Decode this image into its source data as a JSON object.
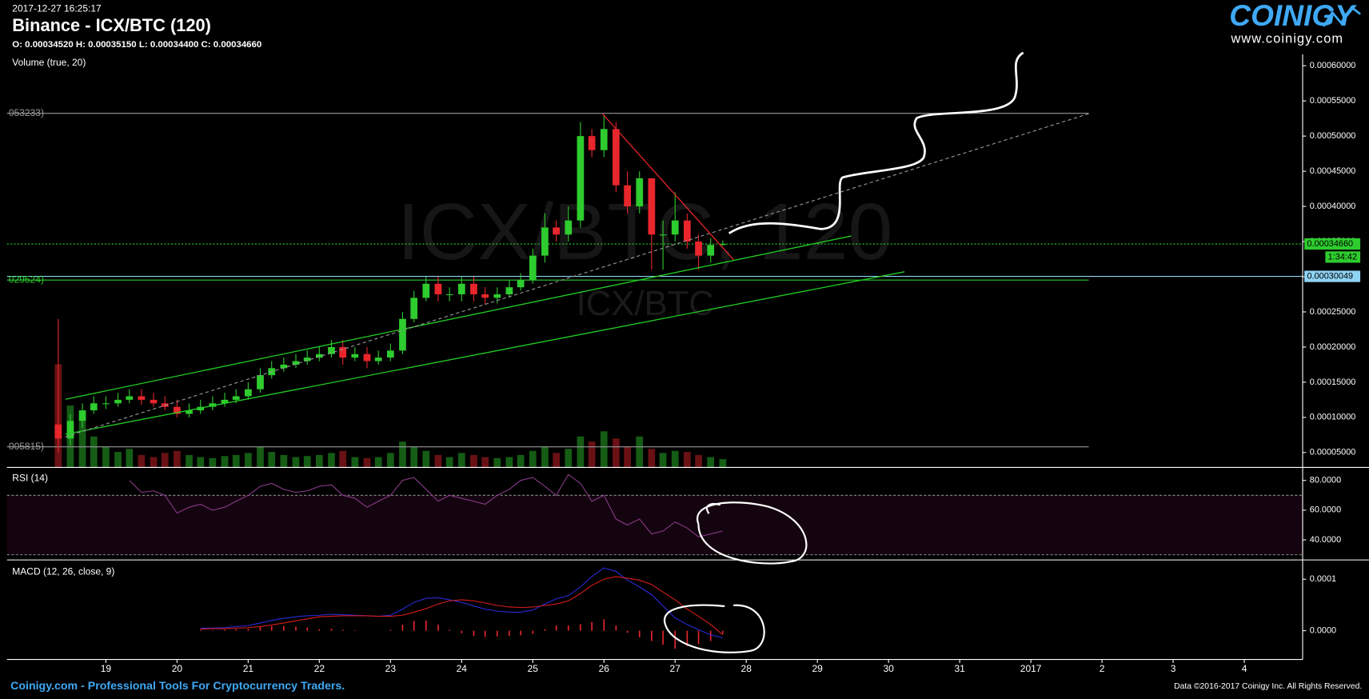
{
  "header": {
    "timestamp": "2017-12-27 16:25:17",
    "title": "Binance - ICX/BTC (120)",
    "ohlc": "O: 0.00034520 H: 0.00035150 L: 0.00034400 C: 0.00034660",
    "volume_label": "Volume (true, 20)",
    "logo": "COINIGY",
    "logo_url": "www.coinigy.com",
    "watermark": "ICX/BTC, 120",
    "watermark_small": "ICX/BTC"
  },
  "footer": {
    "left": "Coinigy.com - Professional Tools For Cryptocurrency Traders.",
    "right": "Data ©2016-2017 Coinigy Inc. All Rights Reserved."
  },
  "chart_data": [
    {
      "type": "candlestick",
      "up_color": "#2ecc2e",
      "down_color": "#e8262c",
      "x": [
        18.33,
        18.5,
        18.67,
        18.83,
        19,
        19.17,
        19.33,
        19.5,
        19.67,
        19.83,
        20,
        20.17,
        20.33,
        20.5,
        20.67,
        20.83,
        21,
        21.17,
        21.33,
        21.5,
        21.67,
        21.83,
        22,
        22.17,
        22.33,
        22.5,
        22.67,
        22.83,
        23,
        23.17,
        23.33,
        23.5,
        23.67,
        23.83,
        24,
        24.17,
        24.33,
        24.5,
        24.67,
        24.83,
        25,
        25.17,
        25.33,
        25.5,
        25.67,
        25.83,
        26,
        26.17,
        26.33,
        26.5,
        26.67,
        26.83,
        27,
        27.17,
        27.33,
        27.5,
        27.67
      ],
      "open": [
        9e-05,
        7e-05,
        9.5e-05,
        0.00011,
        0.00012,
        0.00012,
        0.000125,
        0.00013,
        0.000125,
        0.00012,
        0.000115,
        0.000105,
        0.00011,
        0.000115,
        0.00012,
        0.000125,
        0.00013,
        0.00014,
        0.00016,
        0.00017,
        0.000175,
        0.00018,
        0.000185,
        0.00019,
        0.0002,
        0.000185,
        0.00019,
        0.00018,
        0.000185,
        0.000195,
        0.00024,
        0.00027,
        0.00029,
        0.000275,
        0.000275,
        0.00029,
        0.000275,
        0.00027,
        0.000275,
        0.000285,
        0.000295,
        0.00033,
        0.00037,
        0.00036,
        0.00038,
        0.0005,
        0.00048,
        0.00051,
        0.00043,
        0.0004,
        0.00044,
        0.00036,
        0.00036,
        0.00038,
        0.00035,
        0.00033,
        0.0003452
      ],
      "high": [
        0.00024,
        0.000105,
        0.00012,
        0.00013,
        0.00013,
        0.000135,
        0.00014,
        0.00014,
        0.000135,
        0.00013,
        0.000125,
        0.00012,
        0.000125,
        0.00013,
        0.000135,
        0.00014,
        0.00015,
        0.00017,
        0.00018,
        0.000185,
        0.00019,
        0.000195,
        0.0002,
        0.00021,
        0.00021,
        0.0002,
        0.0002,
        0.000195,
        0.000205,
        0.00025,
        0.00028,
        0.0003,
        0.0003,
        0.000285,
        0.0003,
        0.0003,
        0.000285,
        0.000285,
        0.000295,
        0.000305,
        0.00034,
        0.00039,
        0.00038,
        0.0004,
        0.00052,
        0.00051,
        0.00053,
        0.00052,
        0.00045,
        0.00045,
        0.00044,
        0.00038,
        0.00042,
        0.00039,
        0.00036,
        0.000355,
        0.0003515
      ],
      "low": [
        5e-05,
        6e-05,
        8.5e-05,
        0.000105,
        0.000112,
        0.000115,
        0.00012,
        0.000118,
        0.000115,
        0.00011,
        0.0001,
        0.0001,
        0.000105,
        0.00011,
        0.000115,
        0.00012,
        0.000125,
        0.000135,
        0.000155,
        0.000165,
        0.00017,
        0.000175,
        0.00018,
        0.000185,
        0.000175,
        0.00018,
        0.00017,
        0.000175,
        0.00018,
        0.00019,
        0.000235,
        0.000265,
        0.000265,
        0.000265,
        0.000265,
        0.000265,
        0.00026,
        0.000262,
        0.00027,
        0.00028,
        0.00029,
        0.00032,
        0.00035,
        0.00035,
        0.00037,
        0.00047,
        0.00047,
        0.00042,
        0.00039,
        0.00039,
        0.00031,
        0.00031,
        0.00035,
        0.00034,
        0.00031,
        0.00032,
        0.000344
      ],
      "close": [
        7e-05,
        9.5e-05,
        0.00011,
        0.00012,
        0.00012,
        0.000125,
        0.00013,
        0.000125,
        0.00012,
        0.000115,
        0.000105,
        0.00011,
        0.000115,
        0.00012,
        0.000125,
        0.00013,
        0.00014,
        0.00016,
        0.00017,
        0.000175,
        0.00018,
        0.000185,
        0.00019,
        0.0002,
        0.000185,
        0.00019,
        0.00018,
        0.000185,
        0.000195,
        0.00024,
        0.00027,
        0.00029,
        0.000275,
        0.000275,
        0.00029,
        0.000275,
        0.00027,
        0.000275,
        0.000285,
        0.000295,
        0.00033,
        0.00037,
        0.00036,
        0.00038,
        0.0005,
        0.00048,
        0.00051,
        0.00043,
        0.0004,
        0.00044,
        0.00036,
        0.00036,
        0.00038,
        0.00035,
        0.00033,
        0.0003452,
        0.0003466
      ],
      "volume": [
        100,
        60,
        45,
        30,
        20,
        15,
        18,
        12,
        10,
        14,
        16,
        12,
        10,
        9,
        11,
        12,
        14,
        20,
        15,
        12,
        10,
        11,
        12,
        14,
        16,
        10,
        9,
        10,
        14,
        25,
        20,
        16,
        12,
        10,
        14,
        12,
        10,
        9,
        10,
        12,
        16,
        20,
        14,
        18,
        30,
        25,
        35,
        28,
        20,
        30,
        18,
        14,
        16,
        15,
        12,
        10,
        8
      ],
      "xlim": [
        17.61,
        35.82
      ],
      "xticks": [
        19,
        20,
        21,
        22,
        23,
        24,
        25,
        26,
        27,
        28,
        29,
        30,
        31,
        {
          "value": 32,
          "label": "2017"
        },
        {
          "value": 33,
          "label": "2"
        },
        {
          "value": 34,
          "label": "3"
        },
        {
          "value": 35,
          "label": "4"
        }
      ],
      "ylim": [
        2.89e-05,
        0.0006162
      ],
      "yticks": [
        {
          "value": 5e-05,
          "label": "0.00005000"
        },
        {
          "value": 0.0001,
          "label": "0.00010000"
        },
        {
          "value": 0.00015,
          "label": "0.00015000"
        },
        {
          "value": 0.0002,
          "label": "0.00020000"
        },
        {
          "value": 0.00025,
          "label": "0.00025000"
        },
        {
          "value": 0.0003,
          "label": "0.00030000"
        },
        {
          "value": 0.00035,
          "label": "0.00035000"
        },
        {
          "value": 0.0004,
          "label": "0.00040000"
        },
        {
          "value": 0.00045,
          "label": "0.00045000"
        },
        {
          "value": 0.0005,
          "label": "0.00050000"
        },
        {
          "value": 0.00055,
          "label": "0.00055000"
        },
        {
          "value": 0.0006,
          "label": "0.00060000"
        }
      ],
      "levels": [
        {
          "value": 0.00053233,
          "label": "053233)",
          "color": "#9a9a9a"
        },
        {
          "value": 0.00029524,
          "label": "029524)",
          "color": "#2ecc2e"
        },
        {
          "value": 5.815e-05,
          "label": "005815)",
          "color": "#9a9a9a"
        }
      ],
      "price_markers": [
        {
          "value": 0.0003466,
          "label": "0.00034660",
          "color": "#2ecc2e"
        },
        {
          "value": 0.00030049,
          "label": "0.00030049",
          "color": "#8fd3f4"
        }
      ],
      "countdown": "1:34:42"
    },
    {
      "type": "line",
      "title": "RSI (14)",
      "color": "#8a3a8a",
      "band": [
        30,
        70
      ],
      "values": [
        null,
        null,
        null,
        null,
        null,
        null,
        80,
        72,
        73,
        70,
        58,
        62,
        64,
        60,
        62,
        66,
        70,
        76,
        78,
        74,
        72,
        73,
        76,
        77,
        70,
        68,
        62,
        66,
        70,
        80,
        82,
        74,
        66,
        70,
        68,
        66,
        64,
        70,
        74,
        80,
        82,
        76,
        70,
        84,
        78,
        66,
        70,
        54,
        50,
        54,
        44,
        46,
        52,
        48,
        42,
        44,
        46
      ],
      "ylim": [
        26.5,
        87.6
      ],
      "yticks": [
        {
          "value": 40,
          "label": "40.0000"
        },
        {
          "value": 60,
          "label": "60.0000"
        },
        {
          "value": 80,
          "label": "80.0000"
        }
      ]
    },
    {
      "type": "macd",
      "title": "MACD (12, 26, close, 9)",
      "macd_color": "#2a2ad8",
      "signal_color": "#d81c1c",
      "histogram_color": "#e8262c",
      "macd": [
        null,
        null,
        null,
        null,
        null,
        null,
        null,
        null,
        null,
        null,
        null,
        null,
        5e-06,
        5e-06,
        6e-06,
        8e-06,
        1e-05,
        1.5e-05,
        2e-05,
        2.4e-05,
        2.7e-05,
        2.9e-05,
        3e-05,
        3.2e-05,
        3.1e-05,
        3e-05,
        2.9e-05,
        2.8e-05,
        3e-05,
        4.2e-05,
        5.5e-05,
        6.3e-05,
        6.4e-05,
        6e-05,
        5.5e-05,
        4.8e-05,
        4.2e-05,
        3.8e-05,
        3.6e-05,
        3.6e-05,
        4e-05,
        5.2e-05,
        6.2e-05,
        6.8e-05,
        8.5e-05,
        0.000105,
        0.000122,
        0.000115,
        9.8e-05,
        8.5e-05,
        7e-05,
        4.8e-05,
        2.5e-05,
        1.2e-05,
        2e-06,
        -8e-06,
        -1.4e-05
      ],
      "signal": [
        null,
        null,
        null,
        null,
        null,
        null,
        null,
        null,
        null,
        null,
        null,
        null,
        3e-06,
        4e-06,
        4e-06,
        5e-06,
        6e-06,
        8e-06,
        1.1e-05,
        1.5e-05,
        1.9e-05,
        2.3e-05,
        2.7e-05,
        2.8e-05,
        2.9e-05,
        2.9e-05,
        2.9e-05,
        2.8e-05,
        2.8e-05,
        3e-05,
        3.6e-05,
        4.3e-05,
        5.2e-05,
        5.8e-05,
        6e-05,
        5.8e-05,
        5.4e-05,
        4.9e-05,
        4.6e-05,
        4.5e-05,
        4.6e-05,
        4.9e-05,
        5.2e-05,
        5.8e-05,
        7.2e-05,
        8.8e-05,
        0.0001,
        0.000105,
        0.000102,
        9.8e-05,
        9e-05,
        7.5e-05,
        6e-05,
        4.2e-05,
        2.8e-05,
        1.2e-05,
        -8e-06
      ],
      "histogram": [
        null,
        null,
        null,
        null,
        null,
        null,
        null,
        null,
        null,
        null,
        null,
        null,
        2e-06,
        1e-06,
        2e-06,
        3e-06,
        4e-06,
        7e-06,
        9e-06,
        9e-06,
        8e-06,
        6e-06,
        3e-06,
        4e-06,
        2e-06,
        1e-06,
        0,
        0,
        2e-06,
        1.2e-05,
        1.9e-05,
        2e-05,
        1.2e-05,
        2e-06,
        -5e-06,
        -1e-05,
        -1.2e-05,
        -1.1e-05,
        -1e-05,
        -9e-06,
        -6e-06,
        3e-06,
        1e-05,
        1e-05,
        1.3e-05,
        1.7e-05,
        2.2e-05,
        1e-05,
        -4e-06,
        -1.3e-05,
        -2e-05,
        -2.7e-05,
        -3.5e-05,
        -3e-05,
        -2.6e-05,
        -2e-05,
        -6e-06
      ],
      "ylim": [
        -5.59e-05,
        0.000134
      ],
      "yticks": [
        {
          "value": 0,
          "label": "0.0000"
        },
        {
          "value": 0.0001,
          "label": "0.0001"
        }
      ]
    }
  ]
}
